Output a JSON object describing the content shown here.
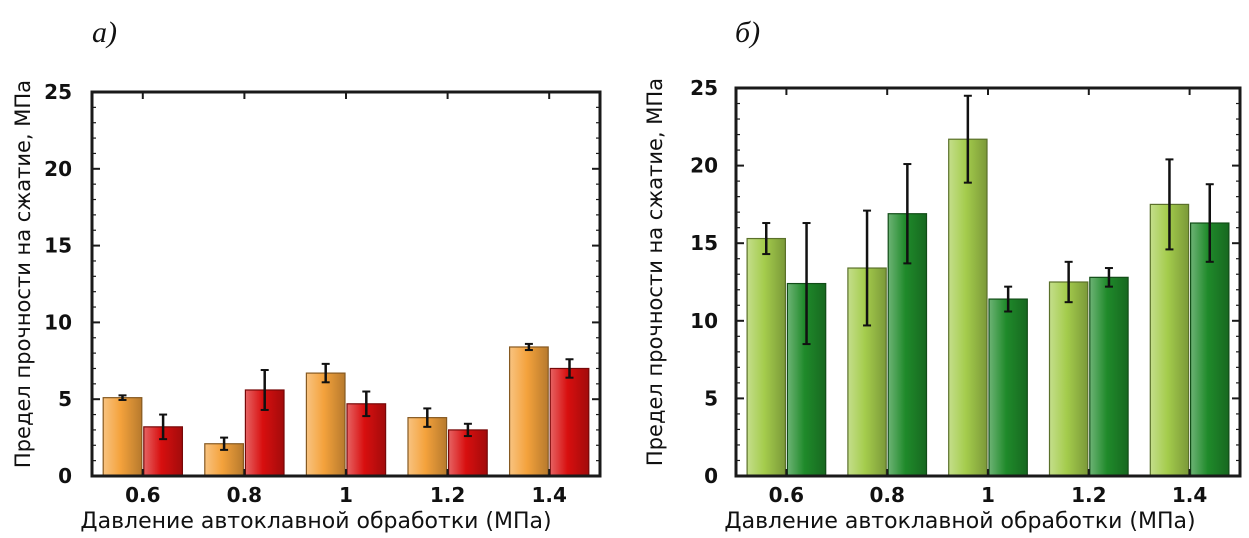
{
  "chart_data": [
    {
      "type": "bar",
      "panel_label": "а)",
      "categories": [
        "0.6",
        "0.8",
        "1",
        "1.2",
        "1.4"
      ],
      "series": [
        {
          "color": "#f4a23c",
          "values": [
            5.1,
            2.1,
            6.7,
            3.8,
            8.4
          ],
          "errors": [
            0.15,
            0.4,
            0.6,
            0.6,
            0.2
          ]
        },
        {
          "color": "#d80f0f",
          "values": [
            3.2,
            5.6,
            4.7,
            3.0,
            7.0
          ],
          "errors": [
            0.8,
            1.3,
            0.8,
            0.4,
            0.6
          ]
        }
      ],
      "xlabel": "Давление автоклавной обработки (МПа)",
      "ylabel": "Предел прочности на сжатие, МПа",
      "ylim": [
        0,
        25
      ],
      "yticks": [
        "0",
        "5",
        "10",
        "15",
        "20",
        "25"
      ],
      "grid": false,
      "frame_color": "#1a1a1a",
      "background": "#ffffff"
    },
    {
      "type": "bar",
      "panel_label": "б)",
      "categories": [
        "0.6",
        "0.8",
        "1",
        "1.2",
        "1.4"
      ],
      "series": [
        {
          "color": "#a4cc4c",
          "values": [
            15.3,
            13.4,
            21.7,
            12.5,
            17.5
          ],
          "errors": [
            1.0,
            3.7,
            2.8,
            1.3,
            2.9
          ]
        },
        {
          "color": "#1f8a2a",
          "values": [
            12.4,
            16.9,
            11.4,
            12.8,
            16.3
          ],
          "errors": [
            3.9,
            3.2,
            0.8,
            0.6,
            2.5
          ]
        }
      ],
      "xlabel": "Давление автоклавной обработки (МПа)",
      "ylabel": "Предел прочности на сжатие, МПа",
      "ylim": [
        0,
        25
      ],
      "yticks": [
        "0",
        "5",
        "10",
        "15",
        "20",
        "25"
      ],
      "grid": false,
      "frame_color": "#1a1a1a",
      "background": "#ffffff"
    }
  ]
}
